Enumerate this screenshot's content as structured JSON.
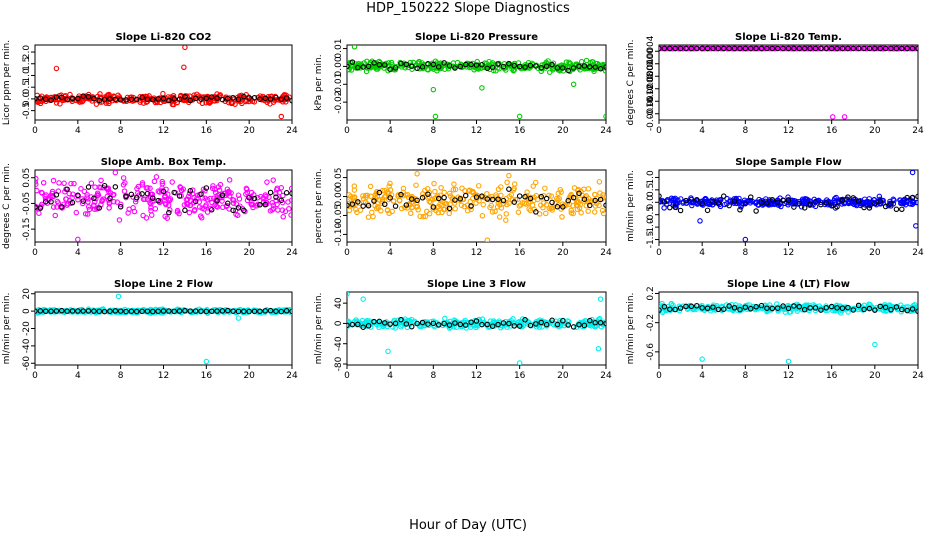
{
  "page": {
    "title": "HDP_150222  Slope Diagnostics",
    "xlabel": "Hour of Day (UTC)"
  },
  "chart_data": [
    {
      "type": "scatter",
      "title": "Slope Li-820 CO2",
      "ylabel": "Licor ppm per min.",
      "color": "#ff0000",
      "xlim": [
        0,
        24
      ],
      "ylim": [
        -0.9,
        2.3
      ],
      "xticks": [
        0,
        4,
        8,
        12,
        16,
        20,
        24
      ],
      "yticks": [
        -0.5,
        0.0,
        0.5,
        1.0,
        1.5,
        2.0
      ],
      "ytick_labels": [
        "-0.5",
        "0.0",
        "0.5",
        "1.0",
        "1.5",
        "2.0"
      ],
      "band": {
        "center": 0.0,
        "spread": 0.28
      },
      "outliers": [
        [
          2,
          1.3
        ],
        [
          13.9,
          1.35
        ],
        [
          14,
          2.2
        ],
        [
          23,
          -0.75
        ]
      ],
      "black_spread": 0.15
    },
    {
      "type": "scatter",
      "title": "Slope Li-820 Pressure",
      "ylabel": "kPa per min.",
      "color": "#00cc00",
      "xlim": [
        0,
        24
      ],
      "ylim": [
        -0.03,
        0.012
      ],
      "xticks": [
        0,
        4,
        8,
        12,
        16,
        20,
        24
      ],
      "yticks": [
        -0.02,
        -0.01,
        0.0,
        0.01
      ],
      "ytick_labels": [
        "-0.02",
        "-0.01",
        "0.00",
        "0.01"
      ],
      "band": {
        "center": 0.0,
        "spread": 0.004
      },
      "outliers": [
        [
          0.7,
          0.011
        ],
        [
          8,
          -0.013
        ],
        [
          8.2,
          -0.028
        ],
        [
          12.5,
          -0.012
        ],
        [
          16,
          -0.028
        ],
        [
          21,
          -0.01
        ],
        [
          24,
          -0.028
        ]
      ],
      "black_spread": 0.003
    },
    {
      "type": "scatter",
      "title": "Slope Li-820 Temp.",
      "ylabel": "degrees C per min.",
      "color": "#ff00ff",
      "xlim": [
        0,
        24
      ],
      "ylim": [
        -0.0018,
        0.0006
      ],
      "xticks": [
        0,
        4,
        8,
        12,
        16,
        20,
        24
      ],
      "yticks": [
        -0.0016,
        -0.0012,
        -0.0008,
        -0.0004,
        0.0,
        0.0004
      ],
      "ytick_labels": [
        "-0.0016",
        "-0.0012",
        "-0.0008",
        "-0.0004",
        "0.0000",
        "0.0004"
      ],
      "band": {
        "center": 0.00049,
        "spread": 0.0
      },
      "outliers": [
        [
          16.1,
          -0.0017
        ],
        [
          17.2,
          -0.0017
        ]
      ],
      "black_spread": 0.0
    },
    {
      "type": "scatter",
      "title": "Slope Amb. Box Temp.",
      "ylabel": "degrees C per min.",
      "color": "#ff00ff",
      "xlim": [
        0,
        24
      ],
      "ylim": [
        -0.2,
        0.08
      ],
      "xticks": [
        0,
        4,
        8,
        12,
        16,
        20,
        24
      ],
      "yticks": [
        -0.15,
        -0.05,
        0.05
      ],
      "ytick_labels": [
        "-0.15",
        "-0.05",
        "0.05"
      ],
      "band": {
        "center": -0.03,
        "spread": 0.1
      },
      "outliers": [
        [
          4,
          -0.19
        ],
        [
          7.5,
          0.07
        ]
      ],
      "black_spread": 0.08
    },
    {
      "type": "scatter",
      "title": "Slope Gas Stream RH",
      "ylabel": "percent per min.",
      "color": "#ffa500",
      "xlim": [
        0,
        24
      ],
      "ylim": [
        -0.12,
        0.07
      ],
      "xticks": [
        0,
        4,
        8,
        12,
        16,
        20,
        24
      ],
      "yticks": [
        -0.1,
        -0.05,
        0.0,
        0.05
      ],
      "ytick_labels": [
        "-0.10",
        "-0.05",
        "0.00",
        "0.05"
      ],
      "band": {
        "center": -0.01,
        "spread": 0.06
      },
      "outliers": [
        [
          6.5,
          0.06
        ],
        [
          13,
          -0.115
        ],
        [
          15,
          0.055
        ]
      ],
      "black_spread": 0.04
    },
    {
      "type": "scatter",
      "title": "Slope Sample Flow",
      "ylabel": "ml/min per min.",
      "color": "#0000ff",
      "xlim": [
        0,
        24
      ],
      "ylim": [
        -1.6,
        1.3
      ],
      "xticks": [
        0,
        4,
        8,
        12,
        16,
        20,
        24
      ],
      "yticks": [
        -1.5,
        -1.0,
        -0.5,
        0.0,
        0.5,
        1.0
      ],
      "ytick_labels": [
        "-1.5",
        "-1.0",
        "-0.5",
        "0.0",
        "0.5",
        "1.0"
      ],
      "band": {
        "center": 0.0,
        "spread": 0.25
      },
      "outliers": [
        [
          8,
          -1.5
        ],
        [
          23.5,
          1.2
        ],
        [
          23.8,
          -0.95
        ],
        [
          3.8,
          -0.75
        ]
      ],
      "black_spread": 0.5
    },
    {
      "type": "scatter",
      "title": "Slope Line 2 Flow",
      "ylabel": "ml/min per min.",
      "color": "#00eeee",
      "xlim": [
        0,
        24
      ],
      "ylim": [
        -62,
        22
      ],
      "xticks": [
        0,
        4,
        8,
        12,
        16,
        20,
        24
      ],
      "yticks": [
        -60,
        -40,
        -20,
        0,
        20
      ],
      "ytick_labels": [
        "-60",
        "-40",
        "-20",
        "0",
        "20"
      ],
      "band": {
        "center": 0,
        "spread": 3
      },
      "outliers": [
        [
          7.8,
          17
        ],
        [
          16,
          -58
        ],
        [
          19,
          -8
        ]
      ],
      "black_spread": 1
    },
    {
      "type": "scatter",
      "title": "Slope Line 3 Flow",
      "ylabel": "ml/min per min.",
      "color": "#00eeee",
      "xlim": [
        0,
        24
      ],
      "ylim": [
        -82,
        62
      ],
      "xticks": [
        0,
        4,
        8,
        12,
        16,
        20,
        24
      ],
      "yticks": [
        -80,
        -40,
        0,
        40
      ],
      "ytick_labels": [
        "-80",
        "-40",
        "0",
        "40"
      ],
      "band": {
        "center": 0,
        "spread": 12
      },
      "outliers": [
        [
          0,
          58
        ],
        [
          1.5,
          48
        ],
        [
          3.8,
          -55
        ],
        [
          16,
          -78
        ],
        [
          23.5,
          48
        ],
        [
          23.3,
          -50
        ]
      ],
      "black_spread": 10
    },
    {
      "type": "scatter",
      "title": "Slope Line 4 (LT) Flow",
      "ylabel": "ml/min per min.",
      "color": "#00eeee",
      "xlim": [
        0,
        24
      ],
      "ylim": [
        -0.78,
        0.22
      ],
      "xticks": [
        0,
        4,
        8,
        12,
        16,
        20,
        24
      ],
      "yticks": [
        -0.6,
        -0.2,
        0.2
      ],
      "ytick_labels": [
        "-0.6",
        "-0.2",
        "0.2"
      ],
      "band": {
        "center": 0.0,
        "spread": 0.07
      },
      "outliers": [
        [
          4,
          -0.7
        ],
        [
          12,
          -0.73
        ],
        [
          20,
          -0.5
        ]
      ],
      "black_spread": 0.06
    }
  ]
}
